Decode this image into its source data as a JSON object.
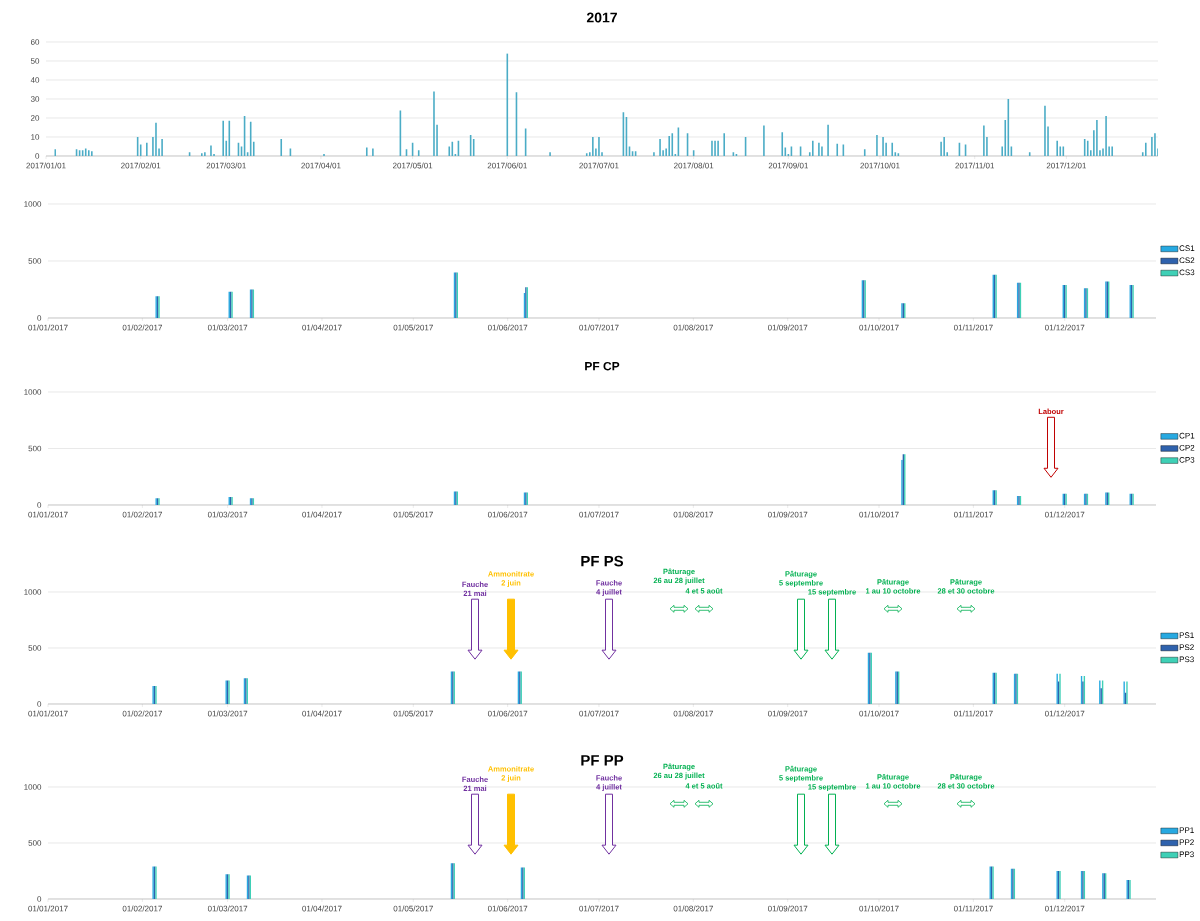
{
  "chart_data": [
    {
      "type": "bar",
      "title": "2017",
      "color": "#4bacc6",
      "grid": "y",
      "x": [
        "2017-01-04",
        "2017-01-11",
        "2017-01-12",
        "2017-01-13",
        "2017-01-14",
        "2017-01-15",
        "2017-01-16",
        "2017-01-31",
        "2017-02-01",
        "2017-02-03",
        "2017-02-05",
        "2017-02-06",
        "2017-02-07",
        "2017-02-08",
        "2017-02-17",
        "2017-02-21",
        "2017-02-22",
        "2017-02-24",
        "2017-02-25",
        "2017-02-28",
        "2017-03-01",
        "2017-03-02",
        "2017-03-05",
        "2017-03-06",
        "2017-03-07",
        "2017-03-08",
        "2017-03-09",
        "2017-03-10",
        "2017-03-19",
        "2017-03-22",
        "2017-04-02",
        "2017-04-16",
        "2017-04-18",
        "2017-04-27",
        "2017-04-29",
        "2017-05-01",
        "2017-05-03",
        "2017-05-08",
        "2017-05-09",
        "2017-05-13",
        "2017-05-14",
        "2017-05-15",
        "2017-05-16",
        "2017-05-20",
        "2017-05-21",
        "2017-06-01",
        "2017-06-04",
        "2017-06-07",
        "2017-06-15",
        "2017-06-27",
        "2017-06-28",
        "2017-06-29",
        "2017-06-30",
        "2017-07-01",
        "2017-07-02",
        "2017-07-09",
        "2017-07-10",
        "2017-07-11",
        "2017-07-12",
        "2017-07-13",
        "2017-07-19",
        "2017-07-21",
        "2017-07-22",
        "2017-07-23",
        "2017-07-24",
        "2017-07-25",
        "2017-07-26",
        "2017-07-27",
        "2017-07-30",
        "2017-08-01",
        "2017-08-07",
        "2017-08-08",
        "2017-08-09",
        "2017-08-11",
        "2017-08-14",
        "2017-08-15",
        "2017-08-18",
        "2017-08-24",
        "2017-08-30",
        "2017-08-31",
        "2017-09-01",
        "2017-09-02",
        "2017-09-05",
        "2017-09-08",
        "2017-09-09",
        "2017-09-11",
        "2017-09-12",
        "2017-09-14",
        "2017-09-17",
        "2017-09-19",
        "2017-09-26",
        "2017-09-30",
        "2017-10-02",
        "2017-10-03",
        "2017-10-05",
        "2017-10-06",
        "2017-10-07",
        "2017-10-21",
        "2017-10-22",
        "2017-10-23",
        "2017-10-27",
        "2017-10-29",
        "2017-11-04",
        "2017-11-05",
        "2017-11-10",
        "2017-11-11",
        "2017-11-12",
        "2017-11-13",
        "2017-11-19",
        "2017-11-24",
        "2017-11-25",
        "2017-11-28",
        "2017-11-29",
        "2017-11-30",
        "2017-12-07",
        "2017-12-08",
        "2017-12-09",
        "2017-12-10",
        "2017-12-11",
        "2017-12-12",
        "2017-12-13",
        "2017-12-14",
        "2017-12-15",
        "2017-12-16",
        "2017-12-26",
        "2017-12-27",
        "2017-12-29",
        "2017-12-30",
        "2017-12-31"
      ],
      "values": [
        3.5,
        3.5,
        3,
        3,
        4,
        3,
        2.5,
        10,
        6,
        7,
        10,
        17.5,
        4,
        9,
        2,
        1.5,
        2,
        5.5,
        1,
        18.5,
        8,
        18.5,
        7,
        5,
        21,
        2,
        18,
        7.5,
        9,
        4,
        1,
        4.5,
        4,
        24,
        3.5,
        7,
        3,
        34,
        16.5,
        5,
        7.5,
        1,
        8,
        11,
        9,
        54,
        33.5,
        14.5,
        2,
        1.5,
        2,
        10,
        4,
        10,
        2,
        23,
        20.5,
        5,
        2.5,
        2.5,
        2,
        9,
        3,
        4,
        10.5,
        12,
        1,
        15,
        12,
        3,
        8,
        8,
        8,
        12,
        2,
        1,
        10,
        16,
        12.5,
        4.5,
        1,
        5,
        5,
        2,
        8,
        7,
        5,
        16.5,
        6.5,
        6,
        3.5,
        11,
        10,
        7,
        7,
        2,
        1.5,
        7.5,
        10,
        2,
        7,
        6,
        16,
        10,
        5,
        19,
        30,
        5,
        2,
        26.5,
        15.5,
        8,
        5,
        5,
        9,
        8,
        3,
        13.5,
        19,
        3,
        4,
        21,
        5,
        5,
        2,
        7,
        10,
        12,
        4
      ],
      "xlim": [
        "2017-01-01",
        "2017-12-31"
      ],
      "xticks": [
        {
          "value": "2017-01-01",
          "label": "2017/01/01"
        },
        {
          "value": "2017-02-01",
          "label": "2017/02/01"
        },
        {
          "value": "2017-03-01",
          "label": "2017/03/01"
        },
        {
          "value": "2017-04-01",
          "label": "2017/04/01"
        },
        {
          "value": "2017-05-01",
          "label": "2017/05/01"
        },
        {
          "value": "2017-06-01",
          "label": "2017/06/01"
        },
        {
          "value": "2017-07-01",
          "label": "2017/07/01"
        },
        {
          "value": "2017-08-01",
          "label": "2017/08/01"
        },
        {
          "value": "2017-09-01",
          "label": "2017/09/01"
        },
        {
          "value": "2017-10-01",
          "label": "2017/10/01"
        },
        {
          "value": "2017-11-01",
          "label": "2017/11/01"
        },
        {
          "value": "2017-12-01",
          "label": "2017/12/01"
        }
      ],
      "ylim": [
        0,
        60
      ],
      "yticks": [
        0,
        10,
        20,
        30,
        40,
        50,
        60
      ]
    },
    {
      "type": "bar",
      "grid": "y",
      "legend": "right",
      "x": [
        "2017-02-06",
        "2017-03-02",
        "2017-03-09",
        "2017-05-15",
        "2017-06-07",
        "2017-09-26",
        "2017-10-09",
        "2017-11-08",
        "2017-11-16",
        "2017-12-01",
        "2017-12-08",
        "2017-12-15",
        "2017-12-23"
      ],
      "series": [
        {
          "name": "CS1",
          "color": "#27a9e1",
          "values": [
            190,
            230,
            250,
            400,
            220,
            330,
            130,
            380,
            310,
            290,
            260,
            320,
            290
          ]
        },
        {
          "name": "CS2",
          "color": "#2f62ad",
          "values": [
            190,
            230,
            250,
            400,
            270,
            330,
            130,
            380,
            310,
            290,
            260,
            320,
            290
          ]
        },
        {
          "name": "CS3",
          "color": "#3fd0b6",
          "values": [
            190,
            230,
            250,
            400,
            270,
            330,
            130,
            380,
            310,
            290,
            260,
            320,
            290
          ]
        }
      ],
      "xlim": [
        "2017-01-01",
        "2017-12-31"
      ],
      "xticks": [
        {
          "value": "2017-01-01",
          "label": "01/01/2017"
        },
        {
          "value": "2017-02-01",
          "label": "01/02/2017"
        },
        {
          "value": "2017-03-01",
          "label": "01/03/2017"
        },
        {
          "value": "2017-04-01",
          "label": "01/04/2017"
        },
        {
          "value": "2017-05-01",
          "label": "01/05/2017"
        },
        {
          "value": "2017-06-01",
          "label": "01/06/2017"
        },
        {
          "value": "2017-07-01",
          "label": "01/07/2017"
        },
        {
          "value": "2017-08-01",
          "label": "01/08/2017"
        },
        {
          "value": "2017-09-01",
          "label": "01/09/2017"
        },
        {
          "value": "2017-10-01",
          "label": "01/10/2017"
        },
        {
          "value": "2017-11-01",
          "label": "01/11/2017"
        },
        {
          "value": "2017-12-01",
          "label": "01/12/2017"
        }
      ],
      "ylim": [
        0,
        1000
      ],
      "yticks": [
        0,
        500,
        1000
      ]
    },
    {
      "type": "bar",
      "title": "PF CP",
      "grid": "y",
      "legend": "right",
      "x": [
        "2017-02-06",
        "2017-03-02",
        "2017-03-09",
        "2017-05-15",
        "2017-06-07",
        "2017-10-09",
        "2017-11-08",
        "2017-11-16",
        "2017-12-01",
        "2017-12-08",
        "2017-12-15",
        "2017-12-23"
      ],
      "series": [
        {
          "name": "CP1",
          "color": "#27a9e1",
          "values": [
            60,
            70,
            60,
            120,
            110,
            400,
            130,
            80,
            100,
            100,
            110,
            100
          ]
        },
        {
          "name": "CP2",
          "color": "#2f62ad",
          "values": [
            60,
            70,
            60,
            120,
            110,
            450,
            130,
            80,
            100,
            100,
            110,
            100
          ]
        },
        {
          "name": "CP3",
          "color": "#3fd0b6",
          "values": [
            60,
            70,
            60,
            120,
            110,
            450,
            130,
            80,
            100,
            100,
            110,
            100
          ]
        }
      ],
      "annotations": [
        "Labour"
      ],
      "xlim": [
        "2017-01-01",
        "2017-12-31"
      ],
      "xticks": [
        {
          "value": "2017-01-01",
          "label": "01/01/2017"
        },
        {
          "value": "2017-02-01",
          "label": "01/02/2017"
        },
        {
          "value": "2017-03-01",
          "label": "01/03/2017"
        },
        {
          "value": "2017-04-01",
          "label": "01/04/2017"
        },
        {
          "value": "2017-05-01",
          "label": "01/05/2017"
        },
        {
          "value": "2017-06-01",
          "label": "01/06/2017"
        },
        {
          "value": "2017-07-01",
          "label": "01/07/2017"
        },
        {
          "value": "2017-08-01",
          "label": "01/08/2017"
        },
        {
          "value": "2017-09-01",
          "label": "01/09/2017"
        },
        {
          "value": "2017-10-01",
          "label": "01/10/2017"
        },
        {
          "value": "2017-11-01",
          "label": "01/11/2017"
        },
        {
          "value": "2017-12-01",
          "label": "01/12/2017"
        }
      ],
      "ylim": [
        0,
        1000
      ],
      "yticks": [
        0,
        500,
        1000
      ]
    },
    {
      "type": "bar",
      "title": "PF PS",
      "grid": "y",
      "legend": "right",
      "x": [
        "2017-02-05",
        "2017-03-01",
        "2017-03-07",
        "2017-05-14",
        "2017-06-05",
        "2017-09-28",
        "2017-10-07",
        "2017-11-08",
        "2017-11-15",
        "2017-11-29",
        "2017-12-07",
        "2017-12-13",
        "2017-12-21"
      ],
      "series": [
        {
          "name": "PS1",
          "color": "#27a9e1",
          "values": [
            160,
            210,
            230,
            290,
            290,
            460,
            290,
            280,
            270,
            270,
            250,
            210,
            200
          ]
        },
        {
          "name": "PS2",
          "color": "#2f62ad",
          "values": [
            160,
            210,
            230,
            290,
            290,
            460,
            290,
            280,
            270,
            200,
            200,
            140,
            100
          ]
        },
        {
          "name": "PS3",
          "color": "#3fd0b6",
          "values": [
            160,
            210,
            230,
            290,
            290,
            460,
            290,
            280,
            270,
            270,
            250,
            210,
            200
          ]
        }
      ],
      "annotations": [
        "Fauche\n21 mai",
        "Ammonitrate\n2 juin",
        "Fauche\n4 juillet",
        "Pâturage\n26 au 28 juillet",
        "4 et 5 août",
        "Pâturage\n5 septembre",
        "15 septembre",
        "Pâturage\n1 au 10 octobre",
        "Pâturage\n28 et 30 octobre"
      ],
      "xlim": [
        "2017-01-01",
        "2017-12-31"
      ],
      "xticks": [
        {
          "value": "2017-01-01",
          "label": "01/01/2017"
        },
        {
          "value": "2017-02-01",
          "label": "01/02/2017"
        },
        {
          "value": "2017-03-01",
          "label": "01/03/2017"
        },
        {
          "value": "2017-04-01",
          "label": "01/04/2017"
        },
        {
          "value": "2017-05-01",
          "label": "01/05/2017"
        },
        {
          "value": "2017-06-01",
          "label": "01/06/2017"
        },
        {
          "value": "2017-07-01",
          "label": "01/07/2017"
        },
        {
          "value": "2017-08-01",
          "label": "01/08/2017"
        },
        {
          "value": "2017-09-01",
          "label": "01/09/2017"
        },
        {
          "value": "2017-10-01",
          "label": "01/10/2017"
        },
        {
          "value": "2017-11-01",
          "label": "01/11/2017"
        },
        {
          "value": "2017-12-01",
          "label": "01/12/2017"
        }
      ],
      "ylim": [
        0,
        1000
      ],
      "yticks": [
        0,
        500,
        1000
      ]
    },
    {
      "type": "bar",
      "title": "PF PP",
      "grid": "y",
      "legend": "right",
      "x": [
        "2017-02-05",
        "2017-03-01",
        "2017-03-08",
        "2017-05-14",
        "2017-06-06",
        "2017-11-07",
        "2017-11-14",
        "2017-11-29",
        "2017-12-07",
        "2017-12-14",
        "2017-12-22"
      ],
      "series": [
        {
          "name": "PP1",
          "color": "#27a9e1",
          "values": [
            290,
            220,
            210,
            320,
            280,
            290,
            270,
            250,
            250,
            230,
            170
          ]
        },
        {
          "name": "PP2",
          "color": "#2f62ad",
          "values": [
            290,
            220,
            210,
            320,
            280,
            290,
            270,
            250,
            250,
            230,
            170
          ]
        },
        {
          "name": "PP3",
          "color": "#3fd0b6",
          "values": [
            290,
            220,
            210,
            320,
            280,
            290,
            270,
            250,
            250,
            230,
            170
          ]
        }
      ],
      "annotations": [
        "Fauche\n21 mai",
        "Ammonitrate\n2 juin",
        "Fauche\n4 juillet",
        "Pâturage\n26 au 28 juillet",
        "4 et 5 août",
        "Pâturage\n5 septembre",
        "15 septembre",
        "Pâturage\n1 au 10 octobre",
        "Pâturage\n28 et 30 octobre"
      ],
      "xlim": [
        "2017-01-01",
        "2017-12-31"
      ],
      "xticks": [
        {
          "value": "2017-01-01",
          "label": "01/01/2017"
        },
        {
          "value": "2017-02-01",
          "label": "01/02/2017"
        },
        {
          "value": "2017-03-01",
          "label": "01/03/2017"
        },
        {
          "value": "2017-04-01",
          "label": "01/04/2017"
        },
        {
          "value": "2017-05-01",
          "label": "01/05/2017"
        },
        {
          "value": "2017-06-01",
          "label": "01/06/2017"
        },
        {
          "value": "2017-07-01",
          "label": "01/07/2017"
        },
        {
          "value": "2017-08-01",
          "label": "01/08/2017"
        },
        {
          "value": "2017-09-01",
          "label": "01/09/2017"
        },
        {
          "value": "2017-10-01",
          "label": "01/10/2017"
        },
        {
          "value": "2017-11-01",
          "label": "01/11/2017"
        },
        {
          "value": "2017-12-01",
          "label": "01/12/2017"
        }
      ],
      "ylim": [
        0,
        1000
      ],
      "yticks": [
        0,
        500,
        1000
      ]
    }
  ]
}
